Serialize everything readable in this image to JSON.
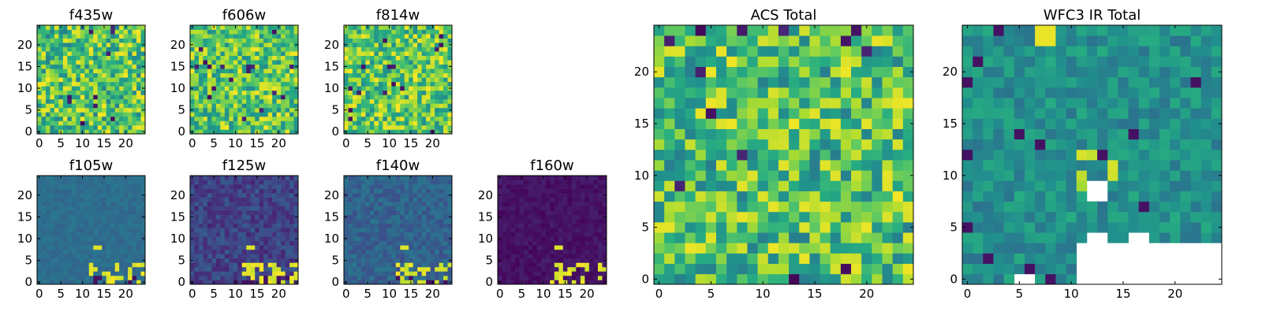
{
  "chart_data": {
    "type": "heatmap",
    "colormap": "viridis",
    "grid_size": 25,
    "panels": [
      {
        "id": "f435w",
        "title": "f435w",
        "group": "small",
        "pattern": "noise",
        "seed": 11,
        "base": 0.72,
        "spread": 0.28,
        "x_ticks": [
          0,
          5,
          10,
          15,
          20
        ],
        "y_ticks": [
          0,
          5,
          10,
          15,
          20
        ]
      },
      {
        "id": "f606w",
        "title": "f606w",
        "group": "small",
        "pattern": "noise",
        "seed": 23,
        "base": 0.74,
        "spread": 0.26,
        "x_ticks": [
          0,
          5,
          10,
          15,
          20
        ],
        "y_ticks": [
          0,
          5,
          10,
          15,
          20
        ]
      },
      {
        "id": "f814w",
        "title": "f814w",
        "group": "small",
        "pattern": "noise",
        "seed": 37,
        "base": 0.74,
        "spread": 0.26,
        "x_ticks": [
          0,
          5,
          10,
          15,
          20
        ],
        "y_ticks": [
          0,
          5,
          10,
          15,
          20
        ]
      },
      {
        "id": "f105w",
        "title": "f105w",
        "group": "small",
        "pattern": "ir",
        "seed": 41,
        "base": 0.36,
        "spread": 0.04,
        "x_ticks": [
          0,
          5,
          10,
          15,
          20
        ],
        "y_ticks": [
          0,
          5,
          10,
          15,
          20
        ]
      },
      {
        "id": "f125w",
        "title": "f125w",
        "group": "small",
        "pattern": "ir",
        "seed": 53,
        "base": 0.2,
        "spread": 0.1,
        "x_ticks": [
          0,
          5,
          10,
          15,
          20
        ],
        "y_ticks": [
          0,
          5,
          10,
          15,
          20
        ]
      },
      {
        "id": "f140w",
        "title": "f140w",
        "group": "small",
        "pattern": "ir",
        "seed": 67,
        "base": 0.32,
        "spread": 0.08,
        "x_ticks": [
          0,
          5,
          10,
          15,
          20
        ],
        "y_ticks": [
          0,
          5,
          10,
          15,
          20
        ]
      },
      {
        "id": "f160w",
        "title": "f160w",
        "group": "small",
        "pattern": "ir",
        "seed": 79,
        "base": 0.05,
        "spread": 0.04,
        "x_ticks": [
          0,
          5,
          10,
          15,
          20
        ],
        "y_ticks": [
          0,
          5,
          10,
          15,
          20
        ]
      },
      {
        "id": "acs_total",
        "title": "ACS Total",
        "group": "large",
        "pattern": "noise",
        "seed": 97,
        "base": 0.7,
        "spread": 0.28,
        "x_ticks": [
          0,
          5,
          10,
          15,
          20
        ],
        "y_ticks": [
          0,
          5,
          10,
          15,
          20
        ]
      },
      {
        "id": "wfc3_ir_total",
        "title": "WFC3 IR Total",
        "group": "large",
        "pattern": "irtotal",
        "seed": 113,
        "base": 0.5,
        "spread": 0.12,
        "x_ticks": [
          0,
          5,
          10,
          15,
          20
        ],
        "y_ticks": [
          0,
          5,
          10,
          15,
          20
        ]
      }
    ]
  }
}
